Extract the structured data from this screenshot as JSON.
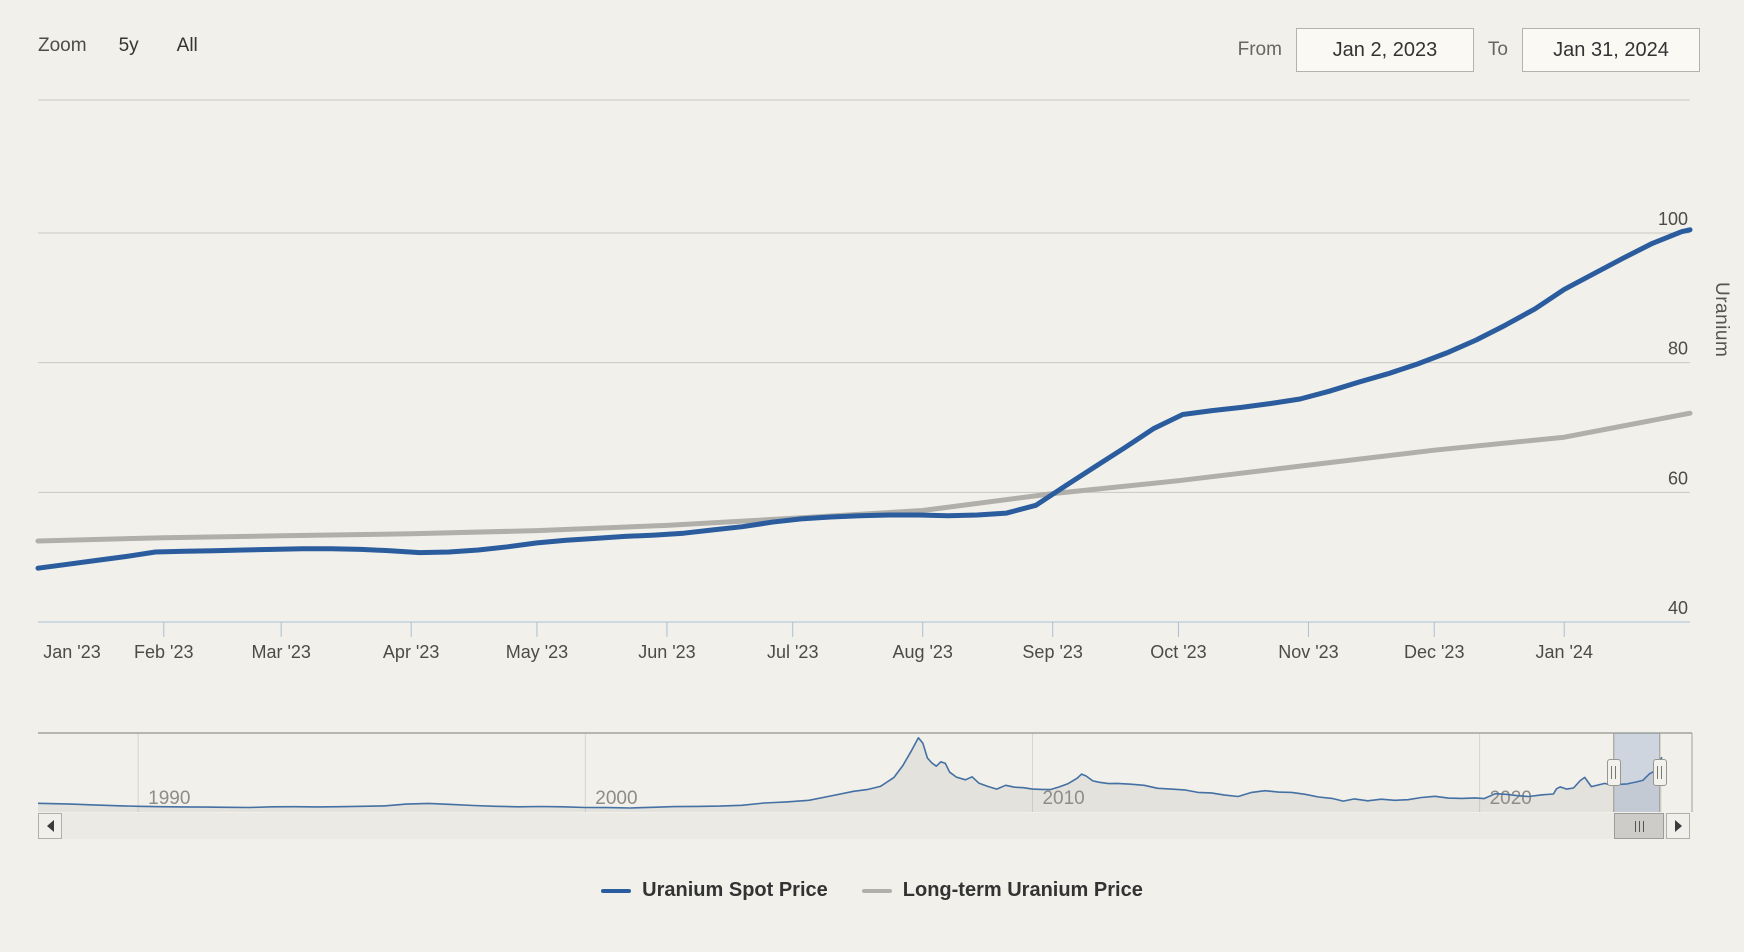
{
  "toolbar": {
    "zoom_label": "Zoom",
    "range_buttons": [
      {
        "label": "5y"
      },
      {
        "label": "All"
      }
    ],
    "from_label": "From",
    "from_value": "Jan 2, 2023",
    "to_label": "To",
    "to_value": "Jan 31, 2024"
  },
  "colors": {
    "background": "#f1f0ea",
    "gridline": "#c9c8c4",
    "axis_line": "#a9bfd6",
    "axis_text": "#4c4b47",
    "spot": "#2a5c9e",
    "longterm": "#b1afa9",
    "nav_border": "#a3a29e",
    "nav_gridline": "#d5d4cf",
    "nav_line": "#4470a4",
    "nav_fill": "rgba(150,150,140,0.15)",
    "nav_text": "#8d8c86",
    "selection_mask": "rgba(80,120,180,0.22)",
    "selection_outline": "#98978f"
  },
  "chart_data": {
    "type": "line",
    "title": "",
    "y_axis": {
      "title": "Uranium",
      "side": "right",
      "ticks": [
        40,
        60,
        80,
        100
      ],
      "range": [
        40,
        120
      ],
      "grid": true
    },
    "x_axis": {
      "tick_labels": [
        "Jan '23",
        "Feb '23",
        "Mar '23",
        "Apr '23",
        "May '23",
        "Jun '23",
        "Jul '23",
        "Aug '23",
        "Sep '23",
        "Oct '23",
        "Nov '23",
        "Dec '23",
        "Jan '24"
      ],
      "tick_day_offsets": [
        0,
        30,
        58,
        89,
        119,
        150,
        180,
        211,
        242,
        272,
        303,
        333,
        364
      ],
      "total_days": 394,
      "range_text": "Jan 2, 2023 - Jan 31, 2024"
    },
    "series": [
      {
        "name": "Uranium Spot Price",
        "color": "#2a5c9e",
        "points": [
          [
            0,
            48.3
          ],
          [
            7,
            48.9
          ],
          [
            14,
            49.5
          ],
          [
            21,
            50.1
          ],
          [
            28,
            50.8
          ],
          [
            35,
            50.9
          ],
          [
            42,
            51.0
          ],
          [
            49,
            51.1
          ],
          [
            56,
            51.2
          ],
          [
            63,
            51.3
          ],
          [
            70,
            51.3
          ],
          [
            77,
            51.2
          ],
          [
            84,
            51.0
          ],
          [
            91,
            50.7
          ],
          [
            98,
            50.8
          ],
          [
            105,
            51.1
          ],
          [
            112,
            51.6
          ],
          [
            119,
            52.2
          ],
          [
            126,
            52.6
          ],
          [
            133,
            52.9
          ],
          [
            140,
            53.2
          ],
          [
            147,
            53.4
          ],
          [
            154,
            53.7
          ],
          [
            161,
            54.2
          ],
          [
            168,
            54.7
          ],
          [
            175,
            55.4
          ],
          [
            182,
            55.9
          ],
          [
            189,
            56.2
          ],
          [
            196,
            56.4
          ],
          [
            203,
            56.5
          ],
          [
            210,
            56.5
          ],
          [
            217,
            56.4
          ],
          [
            224,
            56.5
          ],
          [
            231,
            56.8
          ],
          [
            238,
            58.0
          ],
          [
            245,
            61.0
          ],
          [
            252,
            63.9
          ],
          [
            259,
            66.8
          ],
          [
            266,
            69.8
          ],
          [
            273,
            72.0
          ],
          [
            280,
            72.6
          ],
          [
            287,
            73.1
          ],
          [
            294,
            73.7
          ],
          [
            301,
            74.4
          ],
          [
            308,
            75.6
          ],
          [
            315,
            77.0
          ],
          [
            322,
            78.3
          ],
          [
            329,
            79.8
          ],
          [
            336,
            81.5
          ],
          [
            343,
            83.5
          ],
          [
            350,
            85.8
          ],
          [
            357,
            88.3
          ],
          [
            364,
            91.3
          ],
          [
            371,
            93.7
          ],
          [
            378,
            96.1
          ],
          [
            385,
            98.4
          ],
          [
            392,
            100.2
          ],
          [
            394,
            100.5
          ]
        ]
      },
      {
        "name": "Long-term Uranium Price",
        "color": "#b1afa9",
        "points": [
          [
            0,
            52.5
          ],
          [
            30,
            53.0
          ],
          [
            58,
            53.3
          ],
          [
            89,
            53.6
          ],
          [
            119,
            54.1
          ],
          [
            150,
            54.9
          ],
          [
            180,
            56.0
          ],
          [
            211,
            57.2
          ],
          [
            242,
            59.8
          ],
          [
            272,
            61.8
          ],
          [
            303,
            64.2
          ],
          [
            333,
            66.5
          ],
          [
            364,
            68.5
          ],
          [
            394,
            72.2
          ]
        ]
      }
    ],
    "navigator": {
      "year_labels": [
        "1990",
        "2000",
        "2010",
        "2020"
      ],
      "year_label_positions": [
        1990,
        2000,
        2010,
        2020
      ],
      "year_range": [
        1987.76,
        2024.75
      ],
      "value_range": [
        0,
        140
      ],
      "selection_years": [
        2023.0,
        2024.03
      ],
      "series": {
        "name": "Uranium Spot Price (full history)",
        "color": "#4470a4",
        "points": [
          [
            1987.76,
            16
          ],
          [
            1988.5,
            14.5
          ],
          [
            1989,
            13
          ],
          [
            1989.5,
            11.5
          ],
          [
            1990,
            10.5
          ],
          [
            1990.5,
            9.8
          ],
          [
            1991,
            9.3
          ],
          [
            1991.5,
            9.0
          ],
          [
            1992,
            8.6
          ],
          [
            1992.5,
            8.2
          ],
          [
            1993,
            9.5
          ],
          [
            1993.5,
            9.8
          ],
          [
            1994,
            9.4
          ],
          [
            1994.5,
            9.7
          ],
          [
            1995,
            10.5
          ],
          [
            1995.5,
            11.2
          ],
          [
            1996,
            14.5
          ],
          [
            1996.5,
            15.8
          ],
          [
            1997,
            14.0
          ],
          [
            1997.5,
            12.0
          ],
          [
            1998,
            10.5
          ],
          [
            1998.5,
            9.5
          ],
          [
            1999,
            10.0
          ],
          [
            1999.5,
            9.6
          ],
          [
            2000,
            8.2
          ],
          [
            2000.5,
            8.0
          ],
          [
            2001,
            7.3
          ],
          [
            2001.5,
            8.6
          ],
          [
            2002,
            9.9
          ],
          [
            2002.5,
            10.2
          ],
          [
            2003,
            10.9
          ],
          [
            2003.5,
            12.3
          ],
          [
            2004,
            16.5
          ],
          [
            2004.5,
            18.5
          ],
          [
            2005,
            21.5
          ],
          [
            2005.5,
            29.5
          ],
          [
            2006,
            38
          ],
          [
            2006.3,
            41
          ],
          [
            2006.6,
            47
          ],
          [
            2006.9,
            63
          ],
          [
            2007.1,
            85
          ],
          [
            2007.3,
            113
          ],
          [
            2007.45,
            136
          ],
          [
            2007.55,
            126
          ],
          [
            2007.65,
            99
          ],
          [
            2007.75,
            90
          ],
          [
            2007.85,
            84
          ],
          [
            2007.95,
            92
          ],
          [
            2008.05,
            89
          ],
          [
            2008.15,
            73
          ],
          [
            2008.3,
            64
          ],
          [
            2008.5,
            59
          ],
          [
            2008.65,
            64.5
          ],
          [
            2008.8,
            53
          ],
          [
            2009.0,
            47
          ],
          [
            2009.2,
            42
          ],
          [
            2009.4,
            49
          ],
          [
            2009.6,
            45.5
          ],
          [
            2009.8,
            44.5
          ],
          [
            2010.0,
            42
          ],
          [
            2010.2,
            41.5
          ],
          [
            2010.4,
            41
          ],
          [
            2010.6,
            46
          ],
          [
            2010.8,
            52
          ],
          [
            2011.0,
            62
          ],
          [
            2011.1,
            69.5
          ],
          [
            2011.2,
            66
          ],
          [
            2011.35,
            57
          ],
          [
            2011.5,
            54.5
          ],
          [
            2011.7,
            52
          ],
          [
            2011.9,
            52.5
          ],
          [
            2012.2,
            51
          ],
          [
            2012.5,
            49
          ],
          [
            2012.8,
            43.5
          ],
          [
            2013.1,
            42
          ],
          [
            2013.4,
            40.5
          ],
          [
            2013.7,
            36
          ],
          [
            2014.0,
            35
          ],
          [
            2014.3,
            31
          ],
          [
            2014.6,
            28.5
          ],
          [
            2014.9,
            36
          ],
          [
            2015.2,
            39
          ],
          [
            2015.5,
            36.5
          ],
          [
            2015.8,
            36
          ],
          [
            2016.1,
            32.5
          ],
          [
            2016.4,
            27.5
          ],
          [
            2016.7,
            25
          ],
          [
            2016.95,
            20
          ],
          [
            2017.2,
            24
          ],
          [
            2017.5,
            20.5
          ],
          [
            2017.8,
            23.5
          ],
          [
            2018.1,
            21.5
          ],
          [
            2018.4,
            22.5
          ],
          [
            2018.7,
            26.5
          ],
          [
            2019.0,
            28.8
          ],
          [
            2019.3,
            25.5
          ],
          [
            2019.6,
            25
          ],
          [
            2019.9,
            25.8
          ],
          [
            2020.1,
            24.5
          ],
          [
            2020.35,
            33.5
          ],
          [
            2020.6,
            32.5
          ],
          [
            2020.85,
            29.8
          ],
          [
            2021.1,
            28.5
          ],
          [
            2021.4,
            31.5
          ],
          [
            2021.65,
            33
          ],
          [
            2021.72,
            42.5
          ],
          [
            2021.8,
            46
          ],
          [
            2021.95,
            42
          ],
          [
            2022.1,
            44
          ],
          [
            2022.25,
            57.5
          ],
          [
            2022.35,
            63.5
          ],
          [
            2022.5,
            46.5
          ],
          [
            2022.65,
            49.5
          ],
          [
            2022.8,
            52.5
          ],
          [
            2022.95,
            49
          ],
          [
            2023.1,
            50.5
          ],
          [
            2023.3,
            51.5
          ],
          [
            2023.5,
            55
          ],
          [
            2023.65,
            58
          ],
          [
            2023.7,
            62
          ],
          [
            2023.8,
            70
          ],
          [
            2023.9,
            74.5
          ],
          [
            2024.0,
            91
          ],
          [
            2024.08,
            100.5
          ]
        ]
      }
    }
  },
  "legend": {
    "items": [
      {
        "label": "Uranium Spot Price",
        "color": "#2a5c9e"
      },
      {
        "label": "Long-term Uranium Price",
        "color": "#b1afa9"
      }
    ]
  }
}
